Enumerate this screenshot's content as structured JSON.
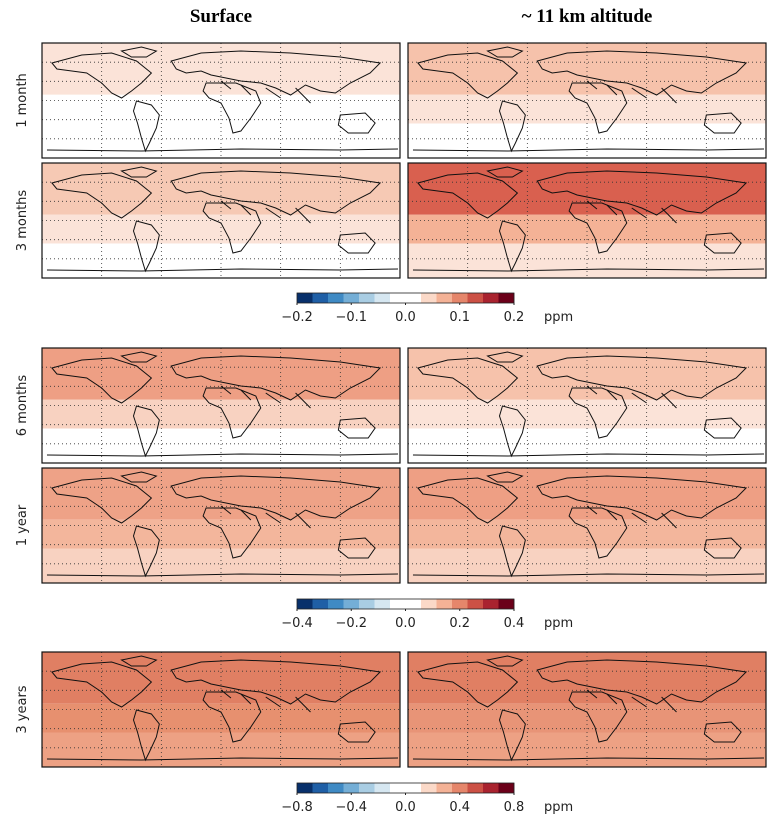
{
  "columns": [
    "Surface",
    "~ 11 km altitude"
  ],
  "groups": [
    {
      "rows": [
        "1 month",
        "3 months"
      ],
      "colorbar": {
        "colors": [
          "#08306b",
          "#1f5fa6",
          "#3f8ac4",
          "#74aed6",
          "#a9cde3",
          "#d6e7f1",
          "#ffffff",
          "#ffffff",
          "#fbd9c8",
          "#f4b296",
          "#e5866b",
          "#cc5145",
          "#a9232f",
          "#6b0019"
        ],
        "lim": [
          -0.2,
          0.2
        ],
        "ticks": [
          {
            "value": -0.2,
            "label": "−0.2"
          },
          {
            "value": -0.1,
            "label": "−0.1"
          },
          {
            "value": 0,
            "label": "0.0"
          },
          0.1,
          0.2
        ],
        "unit": "ppm"
      }
    },
    {
      "rows": [
        "6 months",
        "1 year"
      ],
      "colorbar": {
        "colors": [
          "#08306b",
          "#1f5fa6",
          "#3f8ac4",
          "#74aed6",
          "#a9cde3",
          "#d6e7f1",
          "#ffffff",
          "#ffffff",
          "#fbd9c8",
          "#f4b296",
          "#e5866b",
          "#cc5145",
          "#a9232f",
          "#6b0019"
        ],
        "lim": [
          -0.4,
          0.4
        ],
        "ticks": [
          {
            "value": -0.4,
            "label": "−0.4"
          },
          {
            "value": -0.2,
            "label": "−0.2"
          },
          {
            "value": 0,
            "label": "0.0"
          },
          0.2,
          0.4
        ],
        "unit": "ppm"
      }
    },
    {
      "rows": [
        "3 years"
      ],
      "colorbar": {
        "colors": [
          "#08306b",
          "#1f5fa6",
          "#3f8ac4",
          "#74aed6",
          "#a9cde3",
          "#d6e7f1",
          "#ffffff",
          "#ffffff",
          "#fbd9c8",
          "#f4b296",
          "#e5866b",
          "#cc5145",
          "#a9232f",
          "#6b0019"
        ],
        "lim": [
          -0.8,
          0.8
        ],
        "ticks": [
          {
            "value": -0.8,
            "label": "−0.8"
          },
          {
            "value": -0.4,
            "label": "−0.4"
          },
          {
            "value": 0,
            "label": "0.0"
          },
          0.4,
          0.8
        ],
        "unit": "ppm"
      }
    }
  ]
}
